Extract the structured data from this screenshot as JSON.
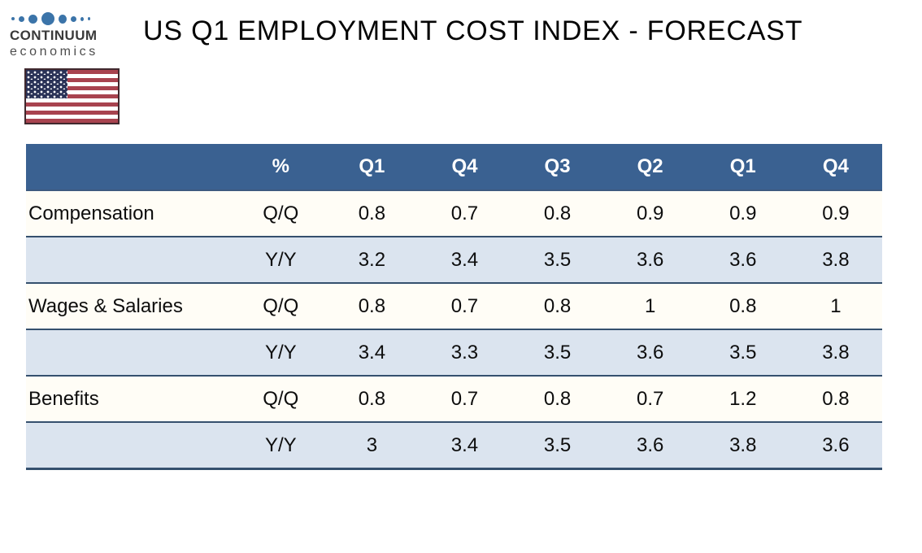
{
  "brand": {
    "name": "CONTINUUM",
    "subtitle": "economics"
  },
  "header": {
    "title": "US Q1 EMPLOYMENT COST INDEX - FORECAST"
  },
  "icons": {
    "us_flag": "us-flag-icon",
    "logo_dots": "continuum-dots-icon"
  },
  "colors": {
    "table_header_bg": "#3a6191",
    "table_alt_row_bg": "#dbe4ef",
    "table_row_border": "#35506e",
    "logo_dot_blue": "#3b74a9",
    "flag_red": "#a8434f",
    "flag_navy": "#2a3257"
  },
  "chart_data": {
    "type": "table",
    "title": "US Q1 EMPLOYMENT COST INDEX - FORECAST",
    "columns": [
      "",
      "%",
      "Q1",
      "Q4",
      "Q3",
      "Q2",
      "Q1",
      "Q4"
    ],
    "rows": [
      {
        "label": "Compensation",
        "freq": "Q/Q",
        "values": [
          0.8,
          0.7,
          0.8,
          0.9,
          0.9,
          0.9
        ]
      },
      {
        "label": "",
        "freq": "Y/Y",
        "values": [
          3.2,
          3.4,
          3.5,
          3.6,
          3.6,
          3.8
        ]
      },
      {
        "label": "Wages & Salaries",
        "freq": "Q/Q",
        "values": [
          0.8,
          0.7,
          0.8,
          1,
          0.8,
          1
        ]
      },
      {
        "label": "",
        "freq": "Y/Y",
        "values": [
          3.4,
          3.3,
          3.5,
          3.6,
          3.5,
          3.8
        ]
      },
      {
        "label": "Benefits",
        "freq": "Q/Q",
        "values": [
          0.8,
          0.7,
          0.8,
          0.7,
          1.2,
          0.8
        ]
      },
      {
        "label": "",
        "freq": "Y/Y",
        "values": [
          3,
          3.4,
          3.5,
          3.6,
          3.8,
          3.6
        ]
      }
    ]
  }
}
